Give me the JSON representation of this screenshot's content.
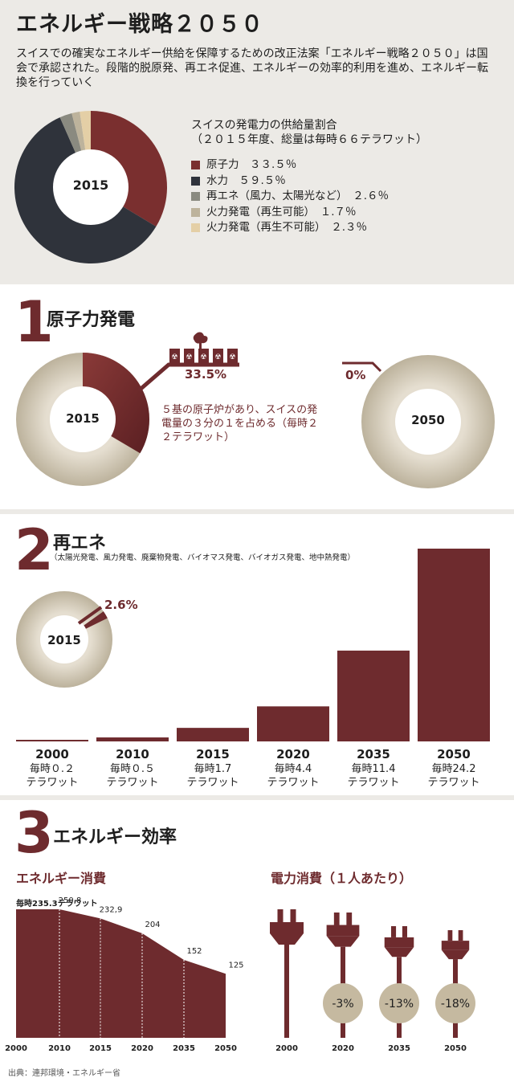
{
  "header": {
    "title": "エネルギー戦略２０５０",
    "intro": "スイスでの確実なエネルギー供給を保障するための改正法案「エネルギー戦略２０５０」は国会で承認された。段階的脱原発、再エネ促進、エネルギーの効率的利用を進め、エネルギー転換を行っていく"
  },
  "supply": {
    "title_line1": "スイスの発電力の供給量割合",
    "title_line2": "（２０１５年度、総量は毎時６６テラワット）",
    "center_label": "2015",
    "colors": [
      "#7a2f2f",
      "#2f333b",
      "#8a8a80",
      "#bdb39c",
      "#e4cfa6"
    ],
    "legend": [
      {
        "label": "原子力　３３.５％"
      },
      {
        "label": "水力　５９.５％"
      },
      {
        "label": "再エネ（風力、太陽光など）　２.６％"
      },
      {
        "label": "火力発電（再生可能）　１.７％"
      },
      {
        "label": "火力発電（再生不可能）　２.３％"
      }
    ]
  },
  "nuclear": {
    "number": "1",
    "title": "原子力発電",
    "pct_2015": "33.5%",
    "pct_2050": "0%",
    "label_2015": "2015",
    "label_2050": "2050",
    "note": "５基の原子炉があり、スイスの発電量の３分の１を占める（毎時２２テラワット）"
  },
  "renewables": {
    "number": "2",
    "title": "再エネ",
    "subtitle": "（太陽光発電、風力発電、廃棄物発電、バイオマス発電、バイオガス発電、地中熱発電）",
    "pct_2015": "2.6%",
    "label_2015": "2015",
    "bars": [
      {
        "year": "2000",
        "line1": "毎時０.２",
        "line2": "テラワット"
      },
      {
        "year": "2010",
        "line1": "毎時０.５",
        "line2": "テラワット"
      },
      {
        "year": "2015",
        "line1": "毎時1.7",
        "line2": "テラワット"
      },
      {
        "year": "2020",
        "line1": "毎時4.4",
        "line2": "テラワット"
      },
      {
        "year": "2035",
        "line1": "毎時11.4",
        "line2": "テラワット"
      },
      {
        "year": "2050",
        "line1": "毎時24.2",
        "line2": "テラワット"
      }
    ]
  },
  "efficiency": {
    "number": "3",
    "title": "エネルギー効率",
    "consumption_title": "エネルギー消費",
    "first_label": "毎時235.3テラワット",
    "per_capita_title": "電力消費（１人あたり）",
    "point_labels": [
      "",
      "250,8",
      "232,9",
      "204",
      "152",
      "125"
    ],
    "x_labels": [
      "2000",
      "2010",
      "2015",
      "2020",
      "2035",
      "2050"
    ],
    "plugs": [
      {
        "year": "2000",
        "badge": ""
      },
      {
        "year": "2020",
        "badge": "-3%"
      },
      {
        "year": "2035",
        "badge": "-13%"
      },
      {
        "year": "2050",
        "badge": "-18%"
      }
    ],
    "source": "出典：連邦環境・エネルギー省"
  },
  "chart_data": [
    {
      "type": "pie",
      "title": "スイスの発電力の供給量割合",
      "categories": [
        "原子力",
        "水力",
        "再エネ（風力、太陽光など）",
        "火力発電（再生可能）",
        "火力発電（再生不可能）"
      ],
      "values": [
        33.5,
        59.5,
        2.6,
        1.7,
        2.3
      ]
    },
    {
      "type": "pie",
      "title": "原子力発電",
      "categories": [
        "2015",
        "2050"
      ],
      "values": [
        33.5,
        0
      ]
    },
    {
      "type": "bar",
      "title": "再エネ",
      "categories": [
        "2000",
        "2010",
        "2015",
        "2020",
        "2035",
        "2050"
      ],
      "values": [
        0.2,
        0.5,
        1.7,
        4.4,
        11.4,
        24.2
      ],
      "ylabel": "テラワット"
    },
    {
      "type": "area",
      "title": "エネルギー消費",
      "categories": [
        "2000",
        "2010",
        "2015",
        "2020",
        "2035",
        "2050"
      ],
      "values": [
        235.3,
        250.8,
        232.9,
        204,
        152,
        125
      ]
    },
    {
      "type": "bar",
      "title": "電力消費（１人あたり）",
      "categories": [
        "2000",
        "2020",
        "2035",
        "2050"
      ],
      "values": [
        0,
        -3,
        -13,
        -18
      ]
    }
  ]
}
